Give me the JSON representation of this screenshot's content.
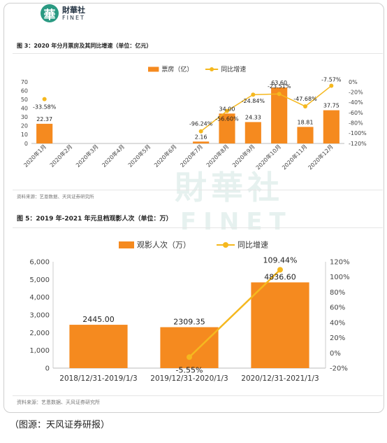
{
  "logo": {
    "mark": "華",
    "name_cn": "財華社",
    "name_en": "FINET"
  },
  "watermark": {
    "line1": "財華社",
    "line2": "FINET"
  },
  "caption": "（图源：天风证券研报）",
  "chart_data": [
    {
      "type": "bar",
      "title": "图 3：2020 年分月票房及其同比增速（单位：亿元）",
      "source": "资料来源：艺恩数据、天风证券研究所",
      "categories": [
        "2020年1月",
        "2020年2月",
        "2020年3月",
        "2020年4月",
        "2020年5月",
        "2020年6月",
        "2020年7月",
        "2020年8月",
        "2020年9月",
        "2020年10月",
        "2020年11月",
        "2020年12月"
      ],
      "series": [
        {
          "name": "票房（亿）",
          "kind": "bar",
          "color": "#f58a1f",
          "values": [
            22.37,
            null,
            null,
            null,
            null,
            null,
            2.16,
            34.0,
            24.33,
            63.6,
            18.81,
            37.75
          ],
          "labels": [
            "22.37",
            "",
            "",
            "",
            "",
            "",
            "2.16",
            "34.00",
            "24.33",
            "63.60",
            "18.81",
            "37.75"
          ]
        },
        {
          "name": "同比增速",
          "kind": "line",
          "color": "#f5b81f",
          "values": [
            -33.58,
            null,
            null,
            null,
            null,
            null,
            -96.24,
            -56.6,
            -24.84,
            -23.51,
            -47.68,
            -7.57
          ],
          "labels": [
            "-33.58%",
            "",
            "",
            "",
            "",
            "",
            "-96.24%",
            "-56.60%",
            "-24.84%",
            "-23.51%",
            "-47.68%",
            "-7.57%"
          ]
        }
      ],
      "ylim": [
        0,
        70
      ],
      "yticks": [
        "0",
        "10",
        "20",
        "30",
        "40",
        "50",
        "60",
        "70"
      ],
      "y2lim": [
        -120,
        0
      ],
      "y2ticks": [
        "0%",
        "-20%",
        "-40%",
        "-60%",
        "-80%",
        "-100%",
        "-120%"
      ],
      "legend": "top-center"
    },
    {
      "type": "bar",
      "title": "图 5：2019 年-2021 年元旦档观影人次（单位：万）",
      "source": "资料来源：艺恩数据、天风证券研究所",
      "categories": [
        "2018/12/31-2019/1/3",
        "2019/12/31-2020/1/3",
        "2020/12/31-2021/1/3"
      ],
      "series": [
        {
          "name": "观影人次（万）",
          "kind": "bar",
          "color": "#f58a1f",
          "values": [
            2445.0,
            2309.35,
            4836.6
          ],
          "labels": [
            "2445.00",
            "2309.35",
            "4836.60"
          ]
        },
        {
          "name": "同比增速",
          "kind": "line",
          "color": "#f5b81f",
          "values": [
            null,
            -5.55,
            109.44
          ],
          "labels": [
            "",
            "-5.55%",
            "109.44%"
          ]
        }
      ],
      "ylim": [
        0,
        6000
      ],
      "yticks": [
        "0",
        "1,000",
        "2,000",
        "3,000",
        "4,000",
        "5,000",
        "6,000"
      ],
      "y2lim": [
        -20,
        120
      ],
      "y2ticks": [
        "-20%",
        "0%",
        "20%",
        "40%",
        "60%",
        "80%",
        "100%",
        "120%"
      ],
      "legend": "top-center"
    }
  ]
}
